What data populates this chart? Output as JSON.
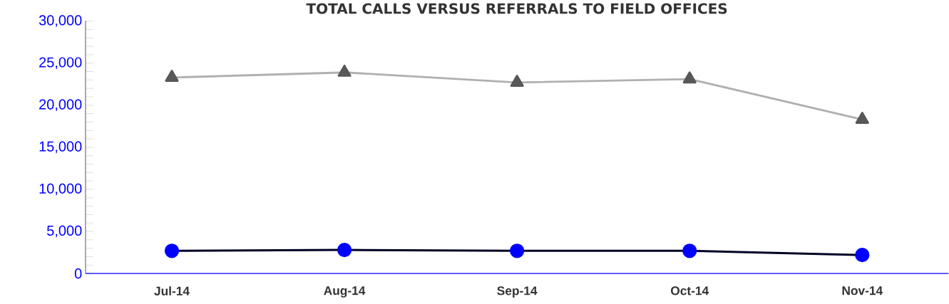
{
  "chart_data": {
    "type": "line",
    "title": "TOTAL CALLS VERSUS REFERRALS TO FIELD OFFICES",
    "categories": [
      "Jul-14",
      "Aug-14",
      "Sep-14",
      "Oct-14",
      "Nov-14"
    ],
    "series": [
      {
        "color": "#b0b0b0",
        "marker": "triangle",
        "values": [
          23300,
          23900,
          22700,
          23100,
          18300
        ]
      },
      {
        "color": "#0000ff",
        "marker": "circle",
        "values": [
          2700,
          2800,
          2700,
          2700,
          2200
        ]
      }
    ],
    "ylim": [
      0,
      30000
    ],
    "yticks": [
      {
        "value": 0,
        "label": "0"
      },
      {
        "value": 5000,
        "label": "5,000"
      },
      {
        "value": 10000,
        "label": "10,000"
      },
      {
        "value": 15000,
        "label": "15,000"
      },
      {
        "value": 20000,
        "label": "20,000"
      },
      {
        "value": 25000,
        "label": "25,000"
      },
      {
        "value": 30000,
        "label": "30,000"
      }
    ],
    "legend": false
  }
}
